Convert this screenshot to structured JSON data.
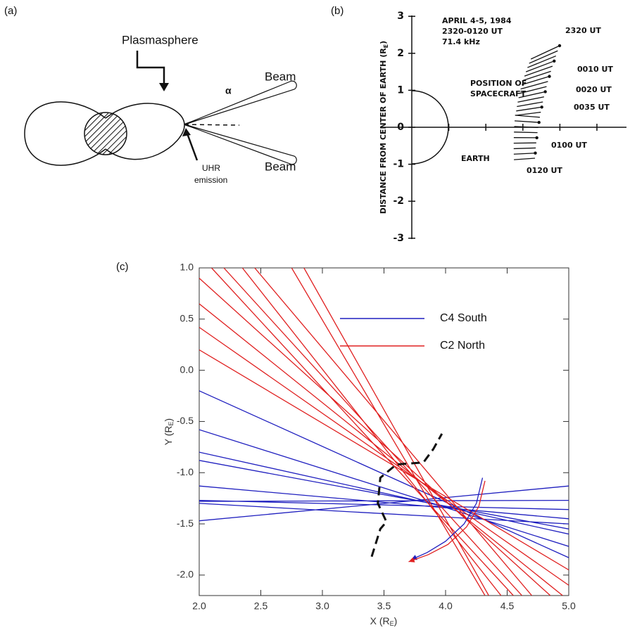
{
  "panel_a": {
    "label": "(a)",
    "title": "Plasmasphere",
    "beam_labels": [
      "Beam",
      "Beam"
    ],
    "angle": "α",
    "emission": [
      "UHR",
      "emission"
    ]
  },
  "panel_b": {
    "label": "(b)",
    "header": [
      "APRIL 4-5, 1984",
      "2320-0120 UT",
      "71.4 kHz"
    ],
    "ylabel": [
      "DISTANCE FROM CENTER OF EARTH (R",
      "E",
      ")"
    ],
    "yticks": [
      3,
      2,
      1,
      0,
      -1,
      -2,
      -3
    ],
    "position_label": [
      "POSITION OF",
      "SPACECRAFT"
    ],
    "earth": "EARTH",
    "times": [
      "2320 UT",
      "0010 UT",
      "0020 UT",
      "0035 UT",
      "0100 UT",
      "0120 UT"
    ]
  },
  "chart_data": {
    "type": "line",
    "label": "(c)",
    "xlabel": [
      "X (R",
      "E",
      ")"
    ],
    "ylabel": [
      "Y (R",
      "E",
      ")"
    ],
    "xlim": [
      2,
      5
    ],
    "ylim": [
      -2.2,
      1.0
    ],
    "xticks": [
      {
        "value": 2,
        "label": "2.0"
      },
      2.5,
      {
        "value": 3,
        "label": "3.0"
      },
      3.5,
      {
        "value": 4,
        "label": "4.0"
      },
      4.5,
      {
        "value": 5,
        "label": "5.0"
      }
    ],
    "yticks": [
      {
        "value": 1,
        "label": "1.0"
      },
      0.5,
      {
        "value": 0,
        "label": "0.0"
      },
      -0.5,
      {
        "value": -1,
        "label": "-1.0"
      },
      -1.5,
      {
        "value": -2,
        "label": "-2.0"
      }
    ],
    "legend": "upper right",
    "series": [
      {
        "name": "C4 South",
        "color": "#1f1fbf",
        "x": [
          2,
          5,
          null,
          2,
          5,
          null,
          2,
          5,
          null,
          2,
          5,
          null,
          2,
          5,
          null,
          2,
          5,
          null,
          2,
          5,
          null,
          2,
          5,
          null,
          2,
          5
        ],
        "values": [
          -0.2,
          -1.83,
          null,
          -0.58,
          -1.72,
          null,
          -0.8,
          -1.6,
          null,
          -0.88,
          -1.55,
          null,
          -1.13,
          -1.45,
          null,
          -1.27,
          -1.36,
          null,
          -1.28,
          -1.27,
          null,
          -1.47,
          -1.13,
          null,
          -1.3,
          -1.5
        ]
      },
      {
        "name": "C2 North",
        "color": "#e02020",
        "x": [
          2.1,
          4.55,
          null,
          2.2,
          4.62,
          null,
          2.35,
          4.45,
          null,
          2.45,
          4.7,
          null,
          2.75,
          4.32,
          null,
          2.85,
          4.35,
          null,
          2,
          4.85,
          null,
          2,
          4.95,
          null,
          2,
          5,
          null,
          2,
          5
        ],
        "values": [
          1,
          -2.2,
          null,
          1,
          -2.2,
          null,
          1,
          -2.2,
          null,
          1,
          -2.2,
          null,
          1,
          -2.2,
          null,
          1,
          -2.2,
          null,
          0.9,
          -2.2,
          null,
          0.65,
          -2.2,
          null,
          0.42,
          -2.1,
          null,
          0.2,
          -1.95
        ]
      },
      {
        "color": "#1f1fbf",
        "x": [
          4.3,
          4.25,
          4.15,
          4.0,
          3.85,
          3.72
        ],
        "values": [
          -1.05,
          -1.3,
          -1.5,
          -1.67,
          -1.78,
          -1.85
        ]
      },
      {
        "color": "#e02020",
        "x": [
          4.32,
          4.27,
          4.17,
          4.02,
          3.86,
          3.7
        ],
        "values": [
          -1.08,
          -1.33,
          -1.53,
          -1.7,
          -1.8,
          -1.87
        ]
      },
      {
        "color": "#111111",
        "linestyle": "dashed",
        "x": [
          3.4,
          3.47,
          3.52,
          3.45,
          3.47,
          3.6,
          3.82,
          3.9,
          3.97
        ],
        "values": [
          -1.82,
          -1.55,
          -1.48,
          -1.3,
          -1.05,
          -0.92,
          -0.9,
          -0.77,
          -0.62
        ]
      }
    ]
  }
}
